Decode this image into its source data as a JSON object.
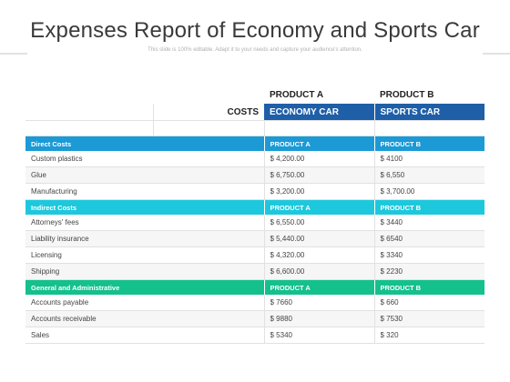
{
  "header": {
    "title": "Expenses Report of Economy and Sports Car",
    "subtitle": "This slide is 100% editable. Adapt it to your needs and capture your audience's attention."
  },
  "table": {
    "product_headers": [
      "PRODUCT A",
      "PRODUCT B"
    ],
    "costs_label": "COSTS",
    "car_headers": [
      "ECONOMY CAR",
      "SPORTS CAR"
    ],
    "sections": [
      {
        "name": "Direct Costs",
        "cols": [
          "PRODUCT A",
          "PRODUCT B"
        ],
        "color": "#1b9ad6",
        "rows": [
          [
            "Custom plastics",
            "$ 4,200.00",
            "$ 4100"
          ],
          [
            "Glue",
            "$ 6,750.00",
            "$ 6,550"
          ],
          [
            "Manufacturing",
            "$ 3,200.00",
            "$ 3,700.00"
          ]
        ]
      },
      {
        "name": "Indirect Costs",
        "cols": [
          "PRODUCT A",
          "PRODUCT B"
        ],
        "color": "#1ec8dc",
        "rows": [
          [
            "Attorneys' fees",
            "$ 6,550.00",
            "$ 3440"
          ],
          [
            "Liability insurance",
            "$ 5,440.00",
            "$ 6540"
          ],
          [
            "Licensing",
            "$ 4,320.00",
            "$ 3340"
          ],
          [
            "Shipping",
            "$ 6,600.00",
            "$ 2230"
          ]
        ]
      },
      {
        "name": "General and Administrative",
        "cols": [
          "PRODUCT A",
          "PRODUCT B"
        ],
        "color": "#14c08c",
        "rows": [
          [
            "Accounts payable",
            "$ 7660",
            "$ 660"
          ],
          [
            "Accounts receivable",
            "$ 9880",
            "$ 7530"
          ],
          [
            "Sales",
            "$ 5340",
            "$ 320"
          ]
        ]
      }
    ]
  },
  "colors": {
    "header_blue": "#1f5fa7",
    "rule_gray": "#e2e2e2"
  }
}
